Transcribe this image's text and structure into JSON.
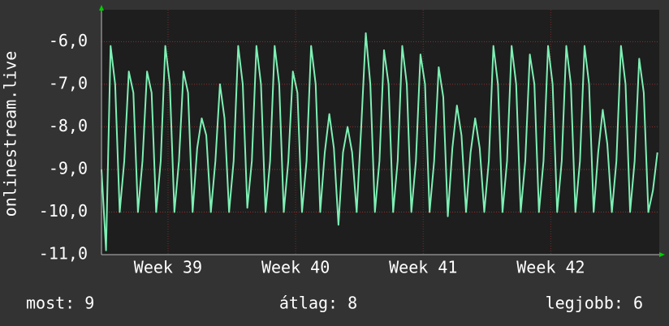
{
  "chart_data": {
    "type": "line",
    "ylabel": "onlinestream.live",
    "x": [
      0,
      0.25,
      0.5,
      0.75,
      1,
      1.25,
      1.5,
      1.75,
      2,
      2.25,
      2.5,
      2.75,
      3,
      3.25,
      3.5,
      3.75,
      4,
      4.25,
      4.5,
      4.75,
      5,
      5.25,
      5.5,
      5.75,
      6,
      6.25,
      6.5,
      6.75,
      7,
      7.25,
      7.5,
      7.75,
      8,
      8.25,
      8.5,
      8.75,
      9,
      9.25,
      9.5,
      9.75,
      10,
      10.25,
      10.5,
      10.75,
      11,
      11.25,
      11.5,
      11.75,
      12,
      12.25,
      12.5,
      12.75,
      13,
      13.25,
      13.5,
      13.75,
      14,
      14.25,
      14.5,
      14.75,
      15,
      15.25,
      15.5,
      15.75,
      16,
      16.25,
      16.5,
      16.75,
      17,
      17.25,
      17.5,
      17.75,
      18,
      18.25,
      18.5,
      18.75,
      19,
      19.25,
      19.5,
      19.75,
      20,
      20.25,
      20.5,
      20.75,
      21,
      21.25,
      21.5,
      21.75,
      22,
      22.25,
      22.5,
      22.75,
      23,
      23.25,
      23.5,
      23.75,
      24,
      24.25,
      24.5,
      24.75,
      25,
      25.25,
      25.5,
      25.75,
      26,
      26.25,
      26.5,
      26.75,
      27,
      27.25,
      27.5,
      27.75,
      28,
      28.25,
      28.5,
      28.75,
      29,
      29.25,
      29.5,
      29.75,
      30,
      30.25,
      30.5
    ],
    "series": [
      {
        "name": "onlinestream.live",
        "color": "#7df0b4",
        "values": [
          -9.0,
          -10.9,
          -6.1,
          -7.0,
          -10.0,
          -8.8,
          -6.7,
          -7.2,
          -10.0,
          -8.8,
          -6.7,
          -7.2,
          -10.0,
          -8.8,
          -6.1,
          -7.0,
          -10.0,
          -8.8,
          -6.7,
          -7.2,
          -10.0,
          -8.5,
          -7.8,
          -8.2,
          -10.0,
          -8.8,
          -7.0,
          -7.8,
          -10.0,
          -8.8,
          -6.1,
          -7.0,
          -9.9,
          -8.8,
          -6.1,
          -7.0,
          -10.0,
          -8.8,
          -6.1,
          -7.0,
          -10.0,
          -8.8,
          -6.7,
          -7.2,
          -10.0,
          -8.8,
          -6.1,
          -7.0,
          -10.0,
          -8.6,
          -7.7,
          -8.5,
          -10.3,
          -8.6,
          -8.0,
          -8.6,
          -10.0,
          -8.0,
          -5.8,
          -7.0,
          -10.0,
          -8.8,
          -6.2,
          -7.0,
          -10.0,
          -8.8,
          -6.1,
          -7.0,
          -10.0,
          -8.8,
          -6.3,
          -7.0,
          -10.0,
          -8.8,
          -6.6,
          -7.3,
          -10.1,
          -8.5,
          -7.5,
          -8.2,
          -10.0,
          -8.6,
          -7.8,
          -8.5,
          -10.0,
          -8.8,
          -6.1,
          -7.0,
          -10.0,
          -8.8,
          -6.1,
          -7.0,
          -10.0,
          -8.8,
          -6.3,
          -7.0,
          -10.0,
          -8.8,
          -6.1,
          -7.0,
          -10.0,
          -8.8,
          -6.1,
          -7.0,
          -10.0,
          -8.8,
          -6.1,
          -7.0,
          -10.0,
          -8.6,
          -7.6,
          -8.4,
          -10.0,
          -8.8,
          -6.1,
          -7.0,
          -10.0,
          -8.8,
          -6.4,
          -7.2,
          -10.0,
          -9.5,
          -8.6
        ]
      }
    ],
    "xlim": [
      0,
      30.6
    ],
    "xticks": [
      {
        "value": 3.65,
        "label": "Week 39"
      },
      {
        "value": 10.65,
        "label": "Week 40"
      },
      {
        "value": 17.65,
        "label": "Week 41"
      },
      {
        "value": 24.65,
        "label": "Week 42"
      }
    ],
    "ylim": [
      -11.0,
      -5.25
    ],
    "yticks": [
      {
        "value": -11,
        "label": "-11,0"
      },
      {
        "value": -10,
        "label": "-10,0"
      },
      {
        "value": -9,
        "label": "-9,0"
      },
      {
        "value": -8,
        "label": "-8,0"
      },
      {
        "value": -7,
        "label": "-7,0"
      },
      {
        "value": -6,
        "label": "-6,0"
      }
    ],
    "grid": true,
    "footer": [
      "most: 9",
      "átlag: 8",
      "legjobb: 6"
    ]
  }
}
